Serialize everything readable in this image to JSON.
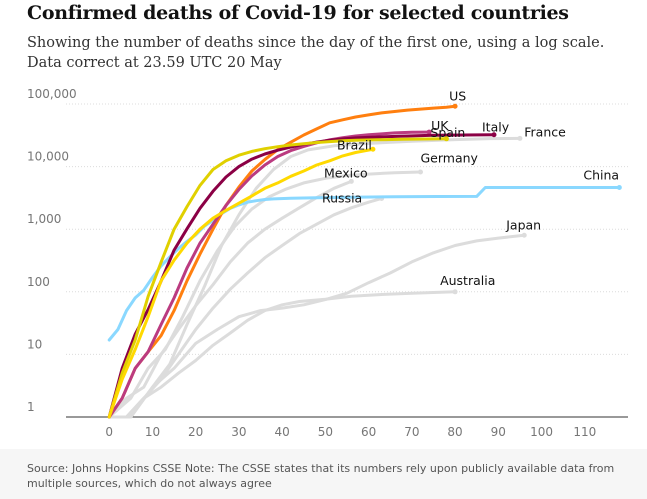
{
  "header": {
    "title": "Confirmed deaths of Covid-19 for selected countries",
    "subtitle_line1": "Showing the number of deaths since the day of the first one, using a log scale.",
    "subtitle_line2": "Data correct at 23.59 UTC 20 May"
  },
  "footer": {
    "note": "Source: Johns Hopkins CSSE Note: The CSSE states that its numbers rely upon publicly available data from multiple sources, which do not always agree"
  },
  "chart_data": {
    "type": "line",
    "title": "Confirmed deaths of Covid-19 for selected countries",
    "xlabel": "",
    "ylabel": "",
    "xlim": [
      -10,
      120
    ],
    "ylim": [
      1,
      100000
    ],
    "y_scale": "log",
    "x_ticks": [
      0,
      10,
      20,
      30,
      40,
      50,
      60,
      70,
      80,
      90,
      100,
      110
    ],
    "y_ticks": [
      1,
      10,
      100,
      1000,
      10000,
      100000
    ],
    "y_tick_labels": [
      "1",
      "10",
      "100",
      "1,000",
      "10,000",
      "100,000"
    ],
    "grid": true,
    "series": [
      {
        "name": "France",
        "color": "#dcdcdc",
        "label_at": [
          96,
          28000
        ],
        "points": [
          [
            0,
            1
          ],
          [
            5,
            1
          ],
          [
            10,
            3
          ],
          [
            14,
            7
          ],
          [
            18,
            30
          ],
          [
            22,
            120
          ],
          [
            26,
            550
          ],
          [
            30,
            1700
          ],
          [
            34,
            4500
          ],
          [
            38,
            9000
          ],
          [
            42,
            14500
          ],
          [
            46,
            18500
          ],
          [
            52,
            21500
          ],
          [
            60,
            23500
          ],
          [
            70,
            25500
          ],
          [
            80,
            27000
          ],
          [
            88,
            28000
          ],
          [
            95,
            28200
          ]
        ]
      },
      {
        "name": "Germany",
        "color": "#dcdcdc",
        "label_at": [
          72,
          10000
        ],
        "points": [
          [
            0,
            1
          ],
          [
            5,
            2
          ],
          [
            9,
            6
          ],
          [
            13,
            12
          ],
          [
            17,
            40
          ],
          [
            21,
            150
          ],
          [
            25,
            450
          ],
          [
            29,
            1100
          ],
          [
            33,
            2100
          ],
          [
            37,
            3300
          ],
          [
            41,
            4400
          ],
          [
            45,
            5500
          ],
          [
            50,
            6500
          ],
          [
            55,
            7200
          ],
          [
            60,
            7600
          ],
          [
            66,
            8000
          ],
          [
            72,
            8200
          ]
        ]
      },
      {
        "name": "Mexico",
        "color": "#dcdcdc",
        "label_at": [
          52,
          6000
        ],
        "points": [
          [
            0,
            1
          ],
          [
            4,
            2
          ],
          [
            8,
            3
          ],
          [
            12,
            10
          ],
          [
            16,
            25
          ],
          [
            20,
            60
          ],
          [
            24,
            130
          ],
          [
            28,
            300
          ],
          [
            32,
            600
          ],
          [
            36,
            1000
          ],
          [
            40,
            1500
          ],
          [
            44,
            2200
          ],
          [
            48,
            3200
          ],
          [
            52,
            4500
          ],
          [
            56,
            5800
          ]
        ]
      },
      {
        "name": "Russia",
        "color": "#dcdcdc",
        "label_at": [
          52,
          2500
        ],
        "points": [
          [
            0,
            1
          ],
          [
            4,
            1
          ],
          [
            8,
            2
          ],
          [
            12,
            4
          ],
          [
            16,
            10
          ],
          [
            20,
            25
          ],
          [
            24,
            55
          ],
          [
            28,
            110
          ],
          [
            32,
            200
          ],
          [
            36,
            350
          ],
          [
            40,
            550
          ],
          [
            44,
            850
          ],
          [
            48,
            1200
          ],
          [
            52,
            1700
          ],
          [
            56,
            2200
          ],
          [
            60,
            2700
          ],
          [
            63,
            3100
          ]
        ]
      },
      {
        "name": "Japan",
        "color": "#dcdcdc",
        "label_at": [
          96,
          800
        ],
        "points": [
          [
            0,
            1
          ],
          [
            5,
            1
          ],
          [
            10,
            3
          ],
          [
            15,
            6
          ],
          [
            20,
            15
          ],
          [
            25,
            25
          ],
          [
            30,
            40
          ],
          [
            35,
            50
          ],
          [
            40,
            55
          ],
          [
            45,
            62
          ],
          [
            50,
            75
          ],
          [
            55,
            95
          ],
          [
            60,
            140
          ],
          [
            65,
            200
          ],
          [
            70,
            300
          ],
          [
            75,
            420
          ],
          [
            80,
            550
          ],
          [
            85,
            650
          ],
          [
            90,
            720
          ],
          [
            96,
            800
          ]
        ]
      },
      {
        "name": "Australia",
        "color": "#dcdcdc",
        "label_at": [
          80,
          100
        ],
        "points": [
          [
            0,
            1
          ],
          [
            4,
            1
          ],
          [
            8,
            2
          ],
          [
            12,
            3
          ],
          [
            16,
            5
          ],
          [
            20,
            8
          ],
          [
            24,
            14
          ],
          [
            28,
            22
          ],
          [
            32,
            35
          ],
          [
            36,
            50
          ],
          [
            40,
            62
          ],
          [
            44,
            70
          ],
          [
            50,
            76
          ],
          [
            56,
            85
          ],
          [
            62,
            90
          ],
          [
            70,
            95
          ],
          [
            80,
            100
          ]
        ]
      },
      {
        "name": "China",
        "color": "#8ad8ff",
        "label_at": [
          118,
          4600
        ],
        "points": [
          [
            0,
            17
          ],
          [
            2,
            25
          ],
          [
            4,
            50
          ],
          [
            6,
            80
          ],
          [
            8,
            106
          ],
          [
            10,
            170
          ],
          [
            12,
            259
          ],
          [
            14,
            361
          ],
          [
            16,
            490
          ],
          [
            18,
            638
          ],
          [
            20,
            811
          ],
          [
            22,
            1113
          ],
          [
            24,
            1380
          ],
          [
            26,
            1770
          ],
          [
            28,
            2150
          ],
          [
            30,
            2440
          ],
          [
            32,
            2700
          ],
          [
            34,
            2850
          ],
          [
            36,
            2980
          ],
          [
            38,
            3050
          ],
          [
            42,
            3120
          ],
          [
            48,
            3180
          ],
          [
            56,
            3250
          ],
          [
            66,
            3300
          ],
          [
            76,
            3330
          ],
          [
            85,
            3340
          ],
          [
            87,
            4630
          ],
          [
            100,
            4634
          ],
          [
            118,
            4637
          ]
        ]
      },
      {
        "name": "US",
        "color": "#ff7f0f",
        "label_at": [
          80,
          92000
        ],
        "points": [
          [
            0,
            1
          ],
          [
            3,
            2
          ],
          [
            6,
            6
          ],
          [
            9,
            11
          ],
          [
            12,
            20
          ],
          [
            15,
            50
          ],
          [
            18,
            150
          ],
          [
            21,
            400
          ],
          [
            24,
            1000
          ],
          [
            27,
            2400
          ],
          [
            30,
            4700
          ],
          [
            33,
            8500
          ],
          [
            36,
            13000
          ],
          [
            39,
            18700
          ],
          [
            42,
            24500
          ],
          [
            45,
            32000
          ],
          [
            48,
            40000
          ],
          [
            51,
            50000
          ],
          [
            54,
            56000
          ],
          [
            57,
            62000
          ],
          [
            60,
            67000
          ],
          [
            63,
            72000
          ],
          [
            66,
            76000
          ],
          [
            69,
            80000
          ],
          [
            72,
            83000
          ],
          [
            75,
            86000
          ],
          [
            78,
            89000
          ],
          [
            80,
            92000
          ]
        ]
      },
      {
        "name": "UK",
        "color": "#bb3b80",
        "label_at": [
          74,
          35600
        ],
        "points": [
          [
            0,
            1
          ],
          [
            3,
            2
          ],
          [
            6,
            6
          ],
          [
            9,
            11
          ],
          [
            12,
            30
          ],
          [
            15,
            80
          ],
          [
            18,
            240
          ],
          [
            21,
            600
          ],
          [
            24,
            1200
          ],
          [
            27,
            2400
          ],
          [
            30,
            4300
          ],
          [
            33,
            7100
          ],
          [
            36,
            10600
          ],
          [
            39,
            14500
          ],
          [
            42,
            18000
          ],
          [
            45,
            21000
          ],
          [
            48,
            24000
          ],
          [
            51,
            26800
          ],
          [
            54,
            29000
          ],
          [
            57,
            30800
          ],
          [
            60,
            32200
          ],
          [
            63,
            33300
          ],
          [
            66,
            34500
          ],
          [
            70,
            35400
          ],
          [
            74,
            35600
          ]
        ]
      },
      {
        "name": "Italy",
        "color": "#8b0045",
        "label_at": [
          89,
          32300
        ],
        "points": [
          [
            0,
            1
          ],
          [
            3,
            6
          ],
          [
            6,
            21
          ],
          [
            9,
            52
          ],
          [
            12,
            148
          ],
          [
            15,
            463
          ],
          [
            18,
            1016
          ],
          [
            21,
            2158
          ],
          [
            24,
            4032
          ],
          [
            27,
            6820
          ],
          [
            30,
            10000
          ],
          [
            33,
            13200
          ],
          [
            36,
            15900
          ],
          [
            39,
            18300
          ],
          [
            42,
            20500
          ],
          [
            45,
            22700
          ],
          [
            48,
            24600
          ],
          [
            51,
            26400
          ],
          [
            54,
            27700
          ],
          [
            57,
            28700
          ],
          [
            62,
            29700
          ],
          [
            68,
            30700
          ],
          [
            75,
            31600
          ],
          [
            82,
            32000
          ],
          [
            89,
            32300
          ]
        ]
      },
      {
        "name": "Spain",
        "color": "#e0d000",
        "label_at": [
          78,
          27800
        ],
        "points": [
          [
            0,
            1
          ],
          [
            3,
            5
          ],
          [
            6,
            17
          ],
          [
            9,
            84
          ],
          [
            12,
            297
          ],
          [
            15,
            1000
          ],
          [
            18,
            2300
          ],
          [
            21,
            5000
          ],
          [
            24,
            9000
          ],
          [
            27,
            12400
          ],
          [
            30,
            15200
          ],
          [
            33,
            17500
          ],
          [
            36,
            19300
          ],
          [
            39,
            20800
          ],
          [
            42,
            22100
          ],
          [
            45,
            23200
          ],
          [
            48,
            24300
          ],
          [
            51,
            25100
          ],
          [
            54,
            25800
          ],
          [
            57,
            26300
          ],
          [
            62,
            26800
          ],
          [
            68,
            27300
          ],
          [
            73,
            27600
          ],
          [
            78,
            27800
          ]
        ]
      },
      {
        "name": "Brazil",
        "color": "#ffd900",
        "label_at": [
          61,
          18900
        ],
        "points": [
          [
            0,
            1
          ],
          [
            3,
            4
          ],
          [
            6,
            12
          ],
          [
            9,
            40
          ],
          [
            12,
            150
          ],
          [
            15,
            320
          ],
          [
            18,
            600
          ],
          [
            21,
            1000
          ],
          [
            24,
            1500
          ],
          [
            27,
            2000
          ],
          [
            30,
            2600
          ],
          [
            33,
            3400
          ],
          [
            36,
            4500
          ],
          [
            39,
            5500
          ],
          [
            42,
            7000
          ],
          [
            45,
            8500
          ],
          [
            48,
            10600
          ],
          [
            51,
            12400
          ],
          [
            54,
            14800
          ],
          [
            57,
            16800
          ],
          [
            61,
            18900
          ]
        ]
      }
    ]
  }
}
